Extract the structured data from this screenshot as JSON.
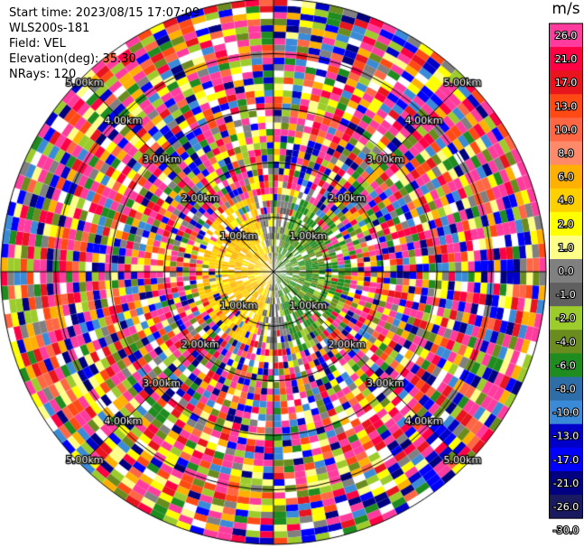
{
  "header": {
    "start_time": "Start time: 2023/08/15 17:07:09",
    "site": "WLS200s-181",
    "field": "Field: VEL",
    "elevation": "Elevation(deg): 35.30",
    "nrays": "NRays: 120"
  },
  "colorbar": {
    "unit": "m/s",
    "labels": [
      "26.0",
      "21.0",
      "17.0",
      "13.0",
      "10.0",
      "8.0",
      "6.0",
      "4.0",
      "2.0",
      "1.0",
      "0.0",
      "-1.0",
      "-2.0",
      "-4.0",
      "-6.0",
      "-8.0",
      "-10.0",
      "-13.0",
      "-17.0",
      "-21.0",
      "-26.0",
      "-30.0"
    ],
    "colors": [
      "#ff3c9e",
      "#ff0044",
      "#e8141e",
      "#ff4a16",
      "#ff6644",
      "#ff8a6a",
      "#ffb000",
      "#ffd000",
      "#ffff00",
      "#ffff88",
      "#808080",
      "#606060",
      "#9ccc2c",
      "#6a8c1e",
      "#1e8c1e",
      "#2e6ea8",
      "#3a8ad8",
      "#0000c8",
      "#0000ff",
      "#000080",
      "#1a1a60"
    ]
  },
  "chart_data": {
    "type": "polar-ppi",
    "field": "VEL",
    "units": "m/s",
    "elevation_deg": 35.3,
    "nrays": 120,
    "range_ring_labels": [
      "1.00km",
      "2.00km",
      "3.00km",
      "4.00km",
      "5.00km"
    ],
    "color_scale_bounds": [
      26.0,
      21.0,
      17.0,
      13.0,
      10.0,
      8.0,
      6.0,
      4.0,
      2.0,
      1.0,
      0.0,
      -1.0,
      -2.0,
      -4.0,
      -6.0,
      -8.0,
      -10.0,
      -13.0,
      -17.0,
      -21.0,
      -26.0,
      -30.0
    ],
    "near_field_pattern": {
      "west_sector": "positive ~4.0 to 6.0 m/s (yellow/orange)",
      "east_sector": "negative ~-2.0 to -6.0 m/s (green)",
      "north_south": "near 0.0 m/s (gray)"
    },
    "far_field": "noise (random colors) beyond ~1.5 km"
  }
}
